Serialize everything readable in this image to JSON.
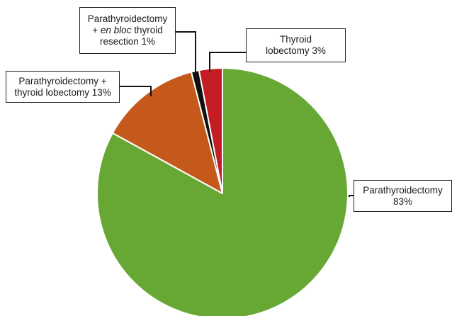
{
  "chart_data": {
    "type": "pie",
    "title": "",
    "slices": [
      {
        "label": "Parathyroidectomy",
        "value": 83,
        "display": "83%",
        "color": "#67a834"
      },
      {
        "label": "Parathyroidectomy + thyroid lobectomy",
        "value": 13,
        "display": "13%",
        "color": "#c4591b"
      },
      {
        "label": "Parathyroidectomy + en bloc thyroid resection",
        "value": 1,
        "display": "1%",
        "color": "#111111"
      },
      {
        "label": "Thyroid lobectomy",
        "value": 3,
        "display": "3%",
        "color": "#c41e24"
      }
    ],
    "legend": "none (callout labels)"
  },
  "labels": {
    "thyroid_lobectomy": {
      "line1": "Thyroid",
      "line2": "lobectomy 3%"
    },
    "parathyroidectomy": {
      "line1": "Parathyroidectomy",
      "line2": "83%"
    },
    "en_bloc": {
      "line1": "Parathyroidectomy",
      "line2_prefix": "+ ",
      "line2_italic": "en bloc",
      "line2_suffix": " thyroid",
      "line3": "resection 1%"
    },
    "para_thyroid_lobectomy": {
      "line1": "Parathyroidectomy +",
      "line2": "thyroid lobectomy 13%"
    }
  }
}
